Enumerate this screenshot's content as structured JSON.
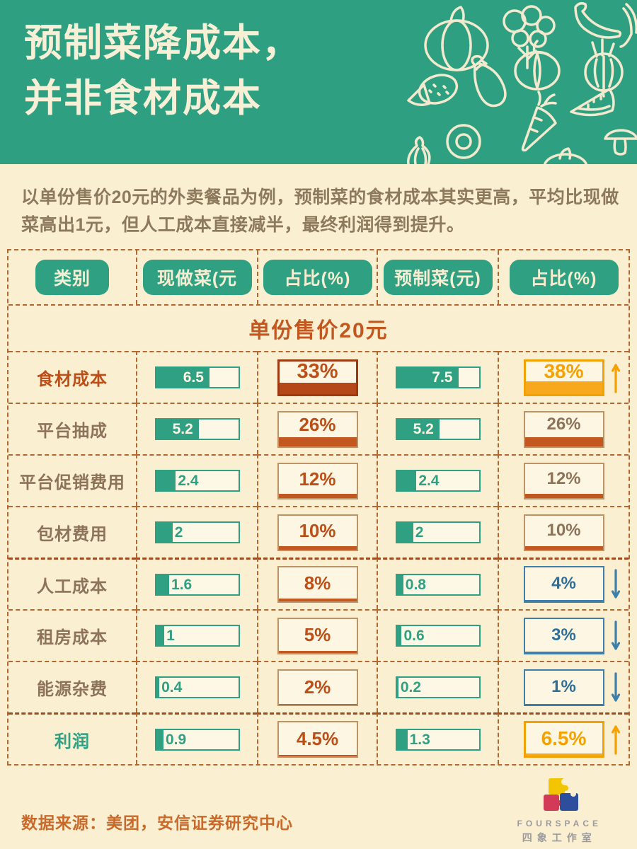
{
  "header": {
    "title_line1": "预制菜降成本，",
    "title_line2": "并非食材成本"
  },
  "intro": "以单份售价20元的外卖餐品为例，预制菜的食材成本其实更高，平均比现做菜高出1元，但人工成本直接减半，最终利润得到提升。",
  "table": {
    "columns": [
      "类别",
      "现做菜(元",
      "占比(%)",
      "预制菜(元)",
      "占比(%)"
    ],
    "subtitle": "单份售价20元",
    "rows": [
      {
        "label": "食材成本",
        "v1": "6.5",
        "p1": "33%",
        "v2": "7.5",
        "p2": "38%",
        "trend": "up",
        "emphasis": "cost",
        "group": false
      },
      {
        "label": "平台抽成",
        "v1": "5.2",
        "p1": "26%",
        "v2": "5.2",
        "p2": "26%",
        "trend": "same",
        "emphasis": "none",
        "group": false
      },
      {
        "label": "平台促销费用",
        "v1": "2.4",
        "p1": "12%",
        "v2": "2.4",
        "p2": "12%",
        "trend": "same",
        "emphasis": "none",
        "group": false
      },
      {
        "label": "包材费用",
        "v1": "2",
        "p1": "10%",
        "v2": "2",
        "p2": "10%",
        "trend": "same",
        "emphasis": "none",
        "group": false
      },
      {
        "label": "人工成本",
        "v1": "1.6",
        "p1": "8%",
        "v2": "0.8",
        "p2": "4%",
        "trend": "down",
        "emphasis": "none",
        "group": true
      },
      {
        "label": "租房成本",
        "v1": "1",
        "p1": "5%",
        "v2": "0.6",
        "p2": "3%",
        "trend": "down",
        "emphasis": "none",
        "group": false
      },
      {
        "label": "能源杂费",
        "v1": "0.4",
        "p1": "2%",
        "v2": "0.2",
        "p2": "1%",
        "trend": "down",
        "emphasis": "none",
        "group": false
      },
      {
        "label": "利润",
        "v1": "0.9",
        "p1": "4.5%",
        "v2": "1.3",
        "p2": "6.5%",
        "trend": "up",
        "emphasis": "profit",
        "group": true
      }
    ],
    "bar_scale_max": 10
  },
  "footer": {
    "source": "数据来源：美团，安信证券研究中心",
    "logo_name": "FOURSPACE",
    "logo_cn": "四象工作室"
  },
  "colors": {
    "header_green": "#2E9F80",
    "cream": "#FBEFD2",
    "bar_green": "#2FA081",
    "burnt_orange": "#BC4F17",
    "amber": "#F5A100",
    "blue": "#2F6E99",
    "dash_brown": "#B5672F",
    "label_brown": "#8D7458"
  },
  "chart_data": {
    "type": "table",
    "title": "预制菜降成本，并非食材成本",
    "subtitle": "单份售价20元",
    "categories": [
      "食材成本",
      "平台抽成",
      "平台促销费用",
      "包材费用",
      "人工成本",
      "租房成本",
      "能源杂费",
      "利润"
    ],
    "series": [
      {
        "name": "现做菜(元)",
        "values": [
          6.5,
          5.2,
          2.4,
          2,
          1.6,
          1,
          0.4,
          0.9
        ]
      },
      {
        "name": "现做菜占比(%)",
        "values": [
          33,
          26,
          12,
          10,
          8,
          5,
          2,
          4.5
        ]
      },
      {
        "name": "预制菜(元)",
        "values": [
          7.5,
          5.2,
          2.4,
          2,
          0.8,
          0.6,
          0.2,
          1.3
        ]
      },
      {
        "name": "预制菜占比(%)",
        "values": [
          38,
          26,
          12,
          10,
          4,
          3,
          1,
          6.5
        ]
      }
    ],
    "trends": [
      "up",
      "same",
      "same",
      "same",
      "down",
      "down",
      "down",
      "up"
    ],
    "bar_scale_max": 10,
    "source": "数据来源：美团，安信证券研究中心"
  }
}
